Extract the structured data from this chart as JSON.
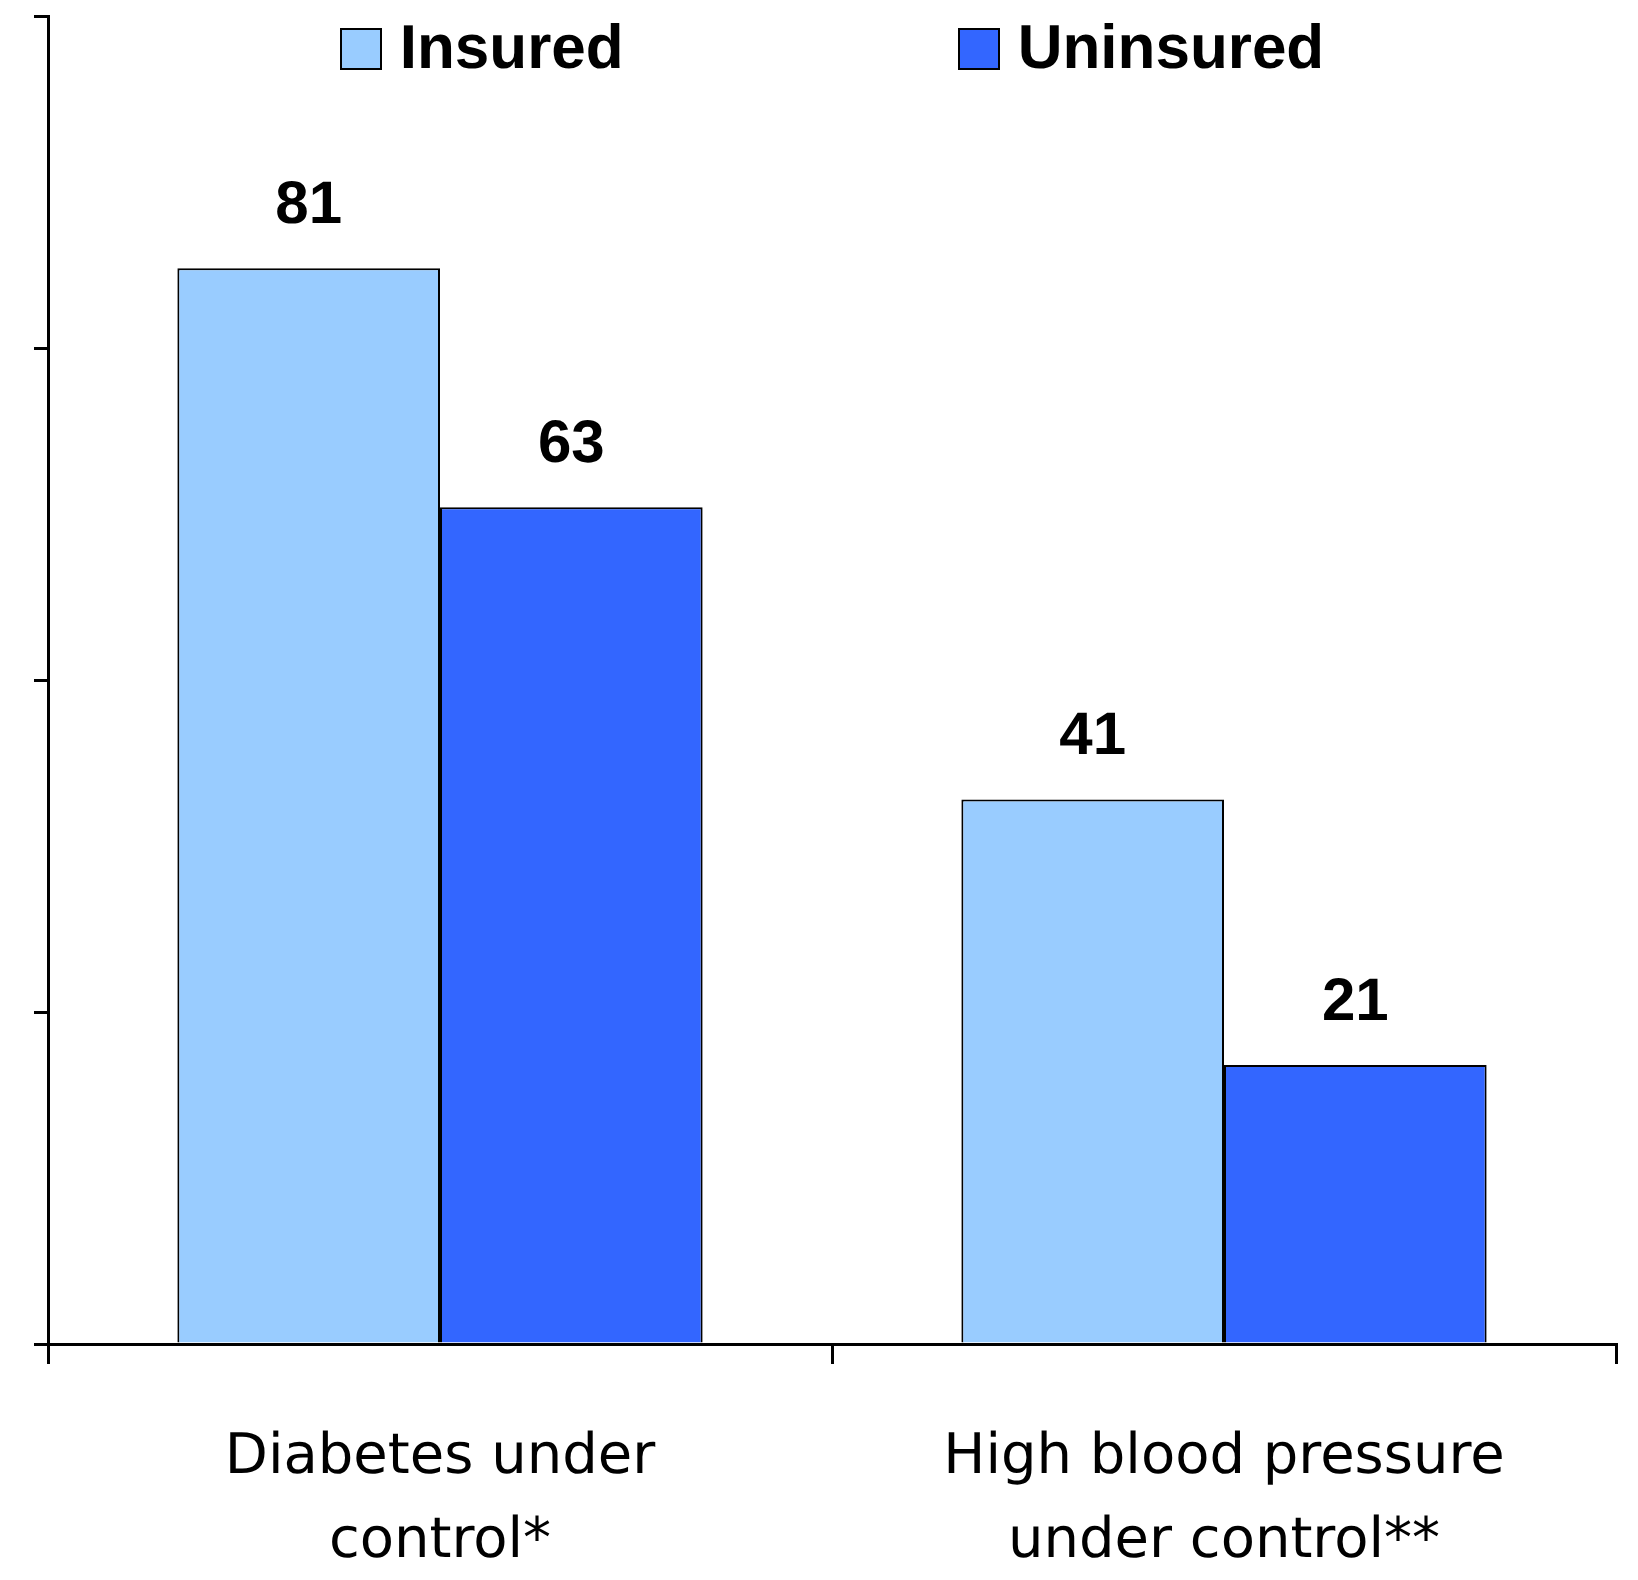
{
  "chart_data": {
    "type": "bar",
    "categories": [
      "Diabetes under control*",
      "High blood pressure under control**"
    ],
    "series": [
      {
        "name": "Insured",
        "color": "#99ccff",
        "values": [
          81,
          41
        ]
      },
      {
        "name": "Uninsured",
        "color": "#3366ff",
        "values": [
          63,
          21
        ]
      }
    ],
    "ylim": [
      0,
      100
    ],
    "yticks": [
      {
        "value": 0,
        "label": null
      },
      {
        "value": 25,
        "label": null
      },
      {
        "value": 50,
        "label": null
      },
      {
        "value": 75,
        "label": null
      },
      {
        "value": 100,
        "label": null
      }
    ],
    "tick_labels": "x",
    "data_labels": true,
    "legend": "top"
  }
}
